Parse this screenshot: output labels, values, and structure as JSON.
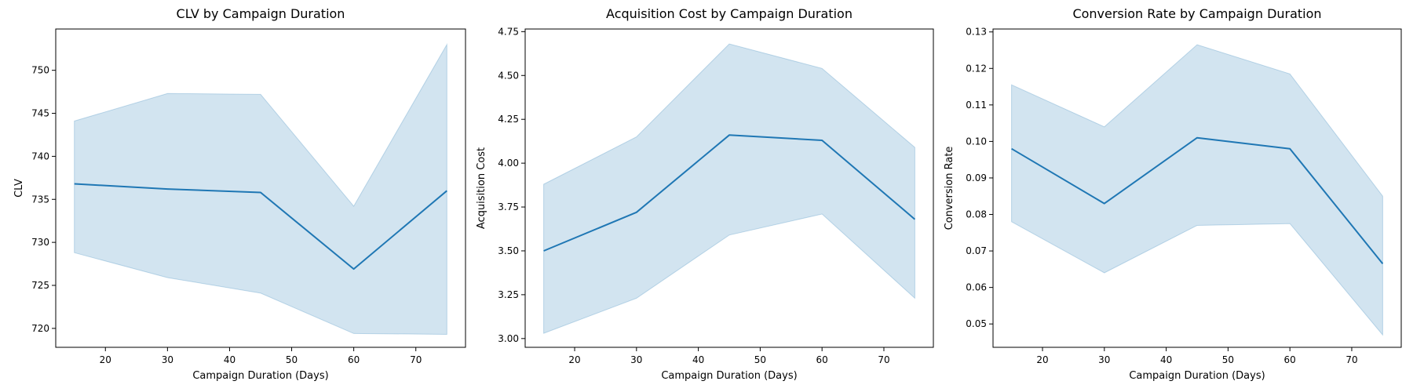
{
  "colors": {
    "line": "#1f77b4",
    "band": "#1f77b4"
  },
  "chart_data": [
    {
      "type": "line",
      "title": "CLV by Campaign Duration",
      "xlabel": "Campaign Duration (Days)",
      "ylabel": "CLV",
      "xlim": [
        12,
        78
      ],
      "ylim": [
        717.8,
        754.8
      ],
      "xticks": [
        20,
        30,
        40,
        50,
        60,
        70
      ],
      "yticks": [
        720,
        725,
        730,
        735,
        740,
        745,
        750
      ],
      "ytick_labels": [
        "720",
        "725",
        "730",
        "735",
        "740",
        "745",
        "750"
      ],
      "x": [
        15,
        30,
        45,
        60,
        75
      ],
      "series": [
        {
          "values": [
            736.8,
            736.2,
            735.8,
            726.9,
            736.0
          ],
          "ci_low": [
            728.8,
            725.9,
            724.1,
            719.4,
            719.3
          ],
          "ci_high": [
            744.1,
            747.3,
            747.2,
            734.2,
            753.0
          ]
        }
      ],
      "grid": false
    },
    {
      "type": "line",
      "title": "Acquisition Cost by Campaign Duration",
      "xlabel": "Campaign Duration (Days)",
      "ylabel": "Acquisition Cost",
      "xlim": [
        12,
        78
      ],
      "ylim": [
        2.95,
        4.765
      ],
      "xticks": [
        20,
        30,
        40,
        50,
        60,
        70
      ],
      "yticks": [
        3.0,
        3.25,
        3.5,
        3.75,
        4.0,
        4.25,
        4.5,
        4.75
      ],
      "ytick_labels": [
        "3.00",
        "3.25",
        "3.50",
        "3.75",
        "4.00",
        "4.25",
        "4.50",
        "4.75"
      ],
      "x": [
        15,
        30,
        45,
        60,
        75
      ],
      "series": [
        {
          "values": [
            3.5,
            3.72,
            4.16,
            4.13,
            3.68
          ],
          "ci_low": [
            3.03,
            3.23,
            3.59,
            3.71,
            3.23
          ],
          "ci_high": [
            3.88,
            4.15,
            4.68,
            4.54,
            4.09
          ]
        }
      ],
      "grid": false
    },
    {
      "type": "line",
      "title": "Conversion Rate by Campaign Duration",
      "xlabel": "Campaign Duration (Days)",
      "ylabel": "Conversion Rate",
      "xlim": [
        12,
        78
      ],
      "ylim": [
        0.0436,
        0.1308
      ],
      "xticks": [
        20,
        30,
        40,
        50,
        60,
        70
      ],
      "yticks": [
        0.05,
        0.06,
        0.07,
        0.08,
        0.09,
        0.1,
        0.11,
        0.12,
        0.13
      ],
      "ytick_labels": [
        "0.05",
        "0.06",
        "0.07",
        "0.08",
        "0.09",
        "0.10",
        "0.11",
        "0.12",
        "0.13"
      ],
      "x": [
        15,
        30,
        45,
        60,
        75
      ],
      "series": [
        {
          "values": [
            0.098,
            0.083,
            0.101,
            0.098,
            0.0665
          ],
          "ci_low": [
            0.078,
            0.064,
            0.077,
            0.0775,
            0.047
          ],
          "ci_high": [
            0.1155,
            0.104,
            0.1265,
            0.1185,
            0.085
          ]
        }
      ],
      "grid": false
    }
  ]
}
